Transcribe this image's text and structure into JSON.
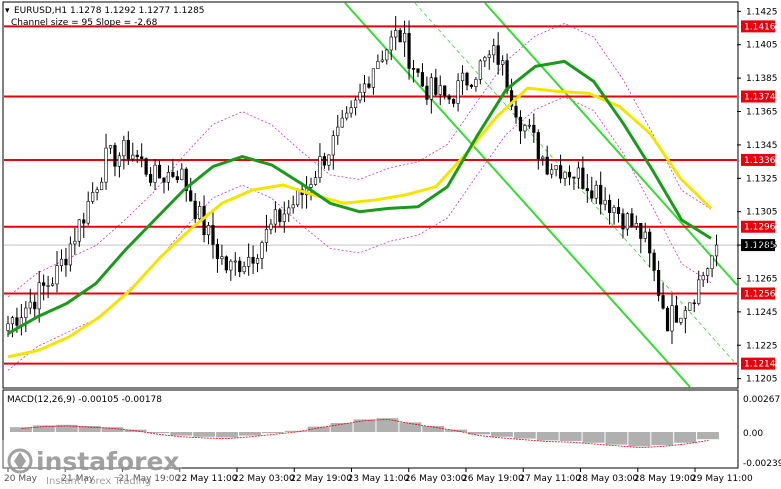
{
  "header": {
    "symbol_line": "EURUSD,H1  1.1278 1.1292 1.1277 1.1285",
    "indicator_line": "Channel size = 95 Slope = -2.68"
  },
  "macd": {
    "label": "MACD(12,26,9) -0.00105 -0.00178",
    "ticks": [
      "0.00267",
      "0.00",
      "-0.00239"
    ]
  },
  "watermark": {
    "brand": "instaforex",
    "tagline": "Instant Forex Trading"
  },
  "chart_data": {
    "type": "candlestick",
    "instrument": "EURUSD",
    "timeframe": "H1",
    "ohlc_last": {
      "open": 1.1278,
      "high": 1.1292,
      "low": 1.1277,
      "close": 1.1285
    },
    "current_price": 1.1285,
    "y_range": [
      1.12,
      1.143
    ],
    "y_ticks": [
      1.1425,
      1.1405,
      1.1385,
      1.1365,
      1.1345,
      1.1325,
      1.1305,
      1.1285,
      1.1265,
      1.1245,
      1.1225,
      1.1205
    ],
    "x_labels": [
      "20 May",
      "21 May",
      "21 May 19:00",
      "22 May 11:00",
      "22 May 03:00",
      "22 May 19:00",
      "23 May 11:00",
      "26 May 03:00",
      "26 May 19:00",
      "27 May 11:00",
      "28 May 03:00",
      "28 May 19:00",
      "29 May 11:00"
    ],
    "horizontal_levels": [
      1.1416,
      1.1374,
      1.1336,
      1.1296,
      1.1256,
      1.1214
    ],
    "level_color": "#e8000b",
    "series_colors": {
      "ma_fast": "#1a9a1a",
      "ma_slow": "#f2e600",
      "envelope": "#cc33cc",
      "channel": "#33dd33",
      "candles": "#000000"
    },
    "ma_fast": [
      1.1232,
      1.1242,
      1.125,
      1.1262,
      1.1282,
      1.13,
      1.1318,
      1.1332,
      1.1338,
      1.1333,
      1.1322,
      1.131,
      1.1305,
      1.1307,
      1.1308,
      1.132,
      1.135,
      1.1378,
      1.1392,
      1.1395,
      1.1383,
      1.1358,
      1.133,
      1.13,
      1.1289
    ],
    "ma_slow": [
      1.1218,
      1.1222,
      1.123,
      1.1242,
      1.1258,
      1.1278,
      1.1295,
      1.131,
      1.1318,
      1.1321,
      1.1315,
      1.131,
      1.1312,
      1.1315,
      1.132,
      1.134,
      1.1362,
      1.1379,
      1.1377,
      1.1376,
      1.1368,
      1.1352,
      1.1325,
      1.1307
    ],
    "macd_histogram": [
      0.0008,
      0.0011,
      0.0012,
      0.001,
      0.0008,
      0.0004,
      -0.0002,
      -0.0006,
      -0.0008,
      -0.0009,
      -0.0006,
      -0.0002,
      0.0002,
      0.0009,
      0.0015,
      0.0021,
      0.0023,
      0.0016,
      0.001,
      0.0004,
      -0.0004,
      -0.0008,
      -0.0011,
      -0.0014,
      -0.0015,
      -0.0018,
      -0.0021,
      -0.0024,
      -0.0022,
      -0.0018,
      -0.0012
    ]
  }
}
